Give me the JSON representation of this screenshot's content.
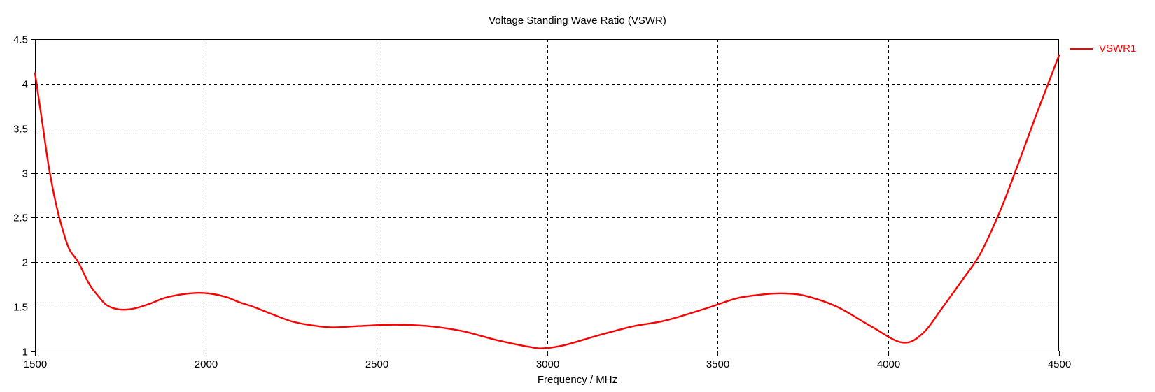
{
  "chart_data": {
    "type": "line",
    "title": "Voltage Standing Wave Ratio (VSWR)",
    "xlabel": "Frequency / MHz",
    "ylabel": "",
    "xlim": [
      1500,
      4500
    ],
    "ylim": [
      1,
      4.5
    ],
    "x_ticks": [
      1500,
      2000,
      2500,
      3000,
      3500,
      4000,
      4500
    ],
    "y_ticks": [
      1,
      1.5,
      2,
      2.5,
      3,
      3.5,
      4,
      4.5
    ],
    "grid": true,
    "grid_style": "dashed",
    "legend_position": "top-right-outside",
    "axis_color": "#000000",
    "background_color": "#ffffff",
    "series": [
      {
        "name": "VSWR1",
        "color": "#FF0000",
        "x": [
          1500,
          1520,
          1540,
          1560,
          1580,
          1600,
          1627,
          1660,
          1690,
          1710,
          1740,
          1770,
          1800,
          1840,
          1880,
          1930,
          1970,
          2010,
          2060,
          2100,
          2140,
          2200,
          2250,
          2300,
          2370,
          2450,
          2550,
          2650,
          2750,
          2850,
          2950,
          2990,
          3050,
          3150,
          3250,
          3350,
          3480,
          3560,
          3650,
          3700,
          3760,
          3850,
          3950,
          4040,
          4100,
          4160,
          4220,
          4270,
          4330,
          4380,
          4430,
          4470,
          4500
        ],
        "y": [
          4.12,
          3.6,
          3.08,
          2.68,
          2.38,
          2.15,
          2.0,
          1.75,
          1.6,
          1.52,
          1.475,
          1.47,
          1.49,
          1.54,
          1.6,
          1.64,
          1.655,
          1.65,
          1.61,
          1.55,
          1.5,
          1.41,
          1.34,
          1.3,
          1.27,
          1.285,
          1.3,
          1.285,
          1.23,
          1.13,
          1.05,
          1.035,
          1.07,
          1.18,
          1.28,
          1.35,
          1.5,
          1.6,
          1.645,
          1.65,
          1.62,
          1.5,
          1.28,
          1.1,
          1.2,
          1.5,
          1.82,
          2.1,
          2.6,
          3.1,
          3.62,
          4.02,
          4.32
        ]
      }
    ]
  }
}
